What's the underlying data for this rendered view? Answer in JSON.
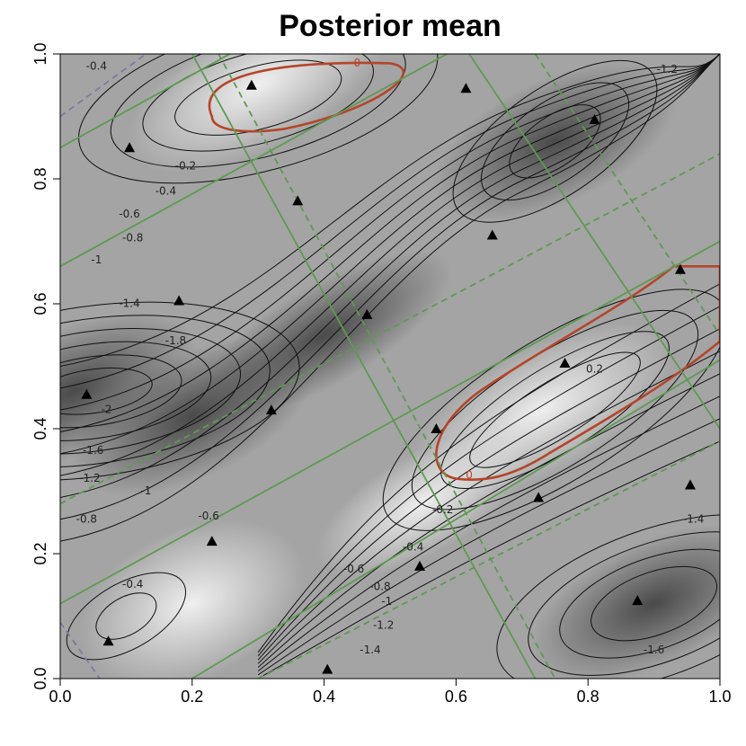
{
  "chart_data": {
    "type": "contour",
    "title": "Posterior mean",
    "xlabel": "",
    "ylabel": "",
    "xlim": [
      0,
      1
    ],
    "ylim": [
      0,
      1
    ],
    "x_ticks": [
      "0.0",
      "0.2",
      "0.4",
      "0.6",
      "0.8",
      "1.0"
    ],
    "y_ticks": [
      "0.0",
      "0.2",
      "0.4",
      "0.6",
      "0.8",
      "1.0"
    ],
    "grid": false,
    "colors": {
      "zero_contour": "#b5452a",
      "green_lines": "#5e9a52",
      "purple_lines": "#7a7aa8",
      "contours": "#111111",
      "points": "#000000"
    },
    "points": [
      {
        "x": 0.04,
        "y": 0.455
      },
      {
        "x": 0.073,
        "y": 0.06
      },
      {
        "x": 0.105,
        "y": 0.85
      },
      {
        "x": 0.18,
        "y": 0.605
      },
      {
        "x": 0.23,
        "y": 0.22
      },
      {
        "x": 0.29,
        "y": 0.95
      },
      {
        "x": 0.32,
        "y": 0.43
      },
      {
        "x": 0.36,
        "y": 0.765
      },
      {
        "x": 0.405,
        "y": 0.015
      },
      {
        "x": 0.465,
        "y": 0.583
      },
      {
        "x": 0.545,
        "y": 0.18
      },
      {
        "x": 0.57,
        "y": 0.4
      },
      {
        "x": 0.615,
        "y": 0.945
      },
      {
        "x": 0.655,
        "y": 0.71
      },
      {
        "x": 0.725,
        "y": 0.29
      },
      {
        "x": 0.765,
        "y": 0.505
      },
      {
        "x": 0.81,
        "y": 0.895
      },
      {
        "x": 0.875,
        "y": 0.125
      },
      {
        "x": 0.94,
        "y": 0.655
      },
      {
        "x": 0.955,
        "y": 0.31
      }
    ],
    "contour_labels": [
      {
        "text": "-0.4",
        "x": 0.055,
        "y": 0.975
      },
      {
        "text": "-0.2",
        "x": 0.19,
        "y": 0.815
      },
      {
        "text": "-0.4",
        "x": 0.16,
        "y": 0.775
      },
      {
        "text": "-0.6",
        "x": 0.105,
        "y": 0.738
      },
      {
        "text": "-0.8",
        "x": 0.11,
        "y": 0.7
      },
      {
        "text": "-1",
        "x": 0.055,
        "y": 0.665
      },
      {
        "text": "-1.4",
        "x": 0.105,
        "y": 0.595
      },
      {
        "text": "-1.8",
        "x": 0.175,
        "y": 0.535
      },
      {
        "text": "-2",
        "x": 0.07,
        "y": 0.425
      },
      {
        "text": "-1.6",
        "x": 0.05,
        "y": 0.36
      },
      {
        "text": "-1.2",
        "x": 0.045,
        "y": 0.315
      },
      {
        "text": "-1",
        "x": 0.13,
        "y": 0.295
      },
      {
        "text": "-0.8",
        "x": 0.04,
        "y": 0.25
      },
      {
        "text": "-0.6",
        "x": 0.225,
        "y": 0.255
      },
      {
        "text": "-0.4",
        "x": 0.11,
        "y": 0.145
      },
      {
        "text": "-0.6",
        "x": 0.445,
        "y": 0.17
      },
      {
        "text": "-0.8",
        "x": 0.485,
        "y": 0.142
      },
      {
        "text": "-1",
        "x": 0.495,
        "y": 0.118
      },
      {
        "text": "-1.2",
        "x": 0.49,
        "y": 0.08
      },
      {
        "text": "-1.4",
        "x": 0.47,
        "y": 0.04
      },
      {
        "text": "-0.4",
        "x": 0.535,
        "y": 0.205
      },
      {
        "text": "-0.2",
        "x": 0.58,
        "y": 0.265
      },
      {
        "text": "0.2",
        "x": 0.81,
        "y": 0.49
      },
      {
        "text": "-1.2",
        "x": 0.92,
        "y": 0.97
      },
      {
        "text": "-1.4",
        "x": 0.96,
        "y": 0.25
      },
      {
        "text": "-1.6",
        "x": 0.9,
        "y": 0.04
      }
    ],
    "zero_labels": [
      {
        "text": "0",
        "x": 0.45,
        "y": 0.98
      },
      {
        "text": "0",
        "x": 0.62,
        "y": 0.32
      }
    ],
    "minima": [
      {
        "x": 0.02,
        "y": 0.46,
        "value": -2.1
      },
      {
        "x": 0.2,
        "y": 0.42,
        "value": -1.8
      },
      {
        "x": 0.9,
        "y": 0.12,
        "value": -1.7
      },
      {
        "x": 0.75,
        "y": 0.86,
        "value": -1.35
      }
    ],
    "maxima": [
      {
        "x": 0.3,
        "y": 0.95,
        "value": 0.2
      },
      {
        "x": 0.73,
        "y": 0.43,
        "value": 0.25
      }
    ]
  }
}
